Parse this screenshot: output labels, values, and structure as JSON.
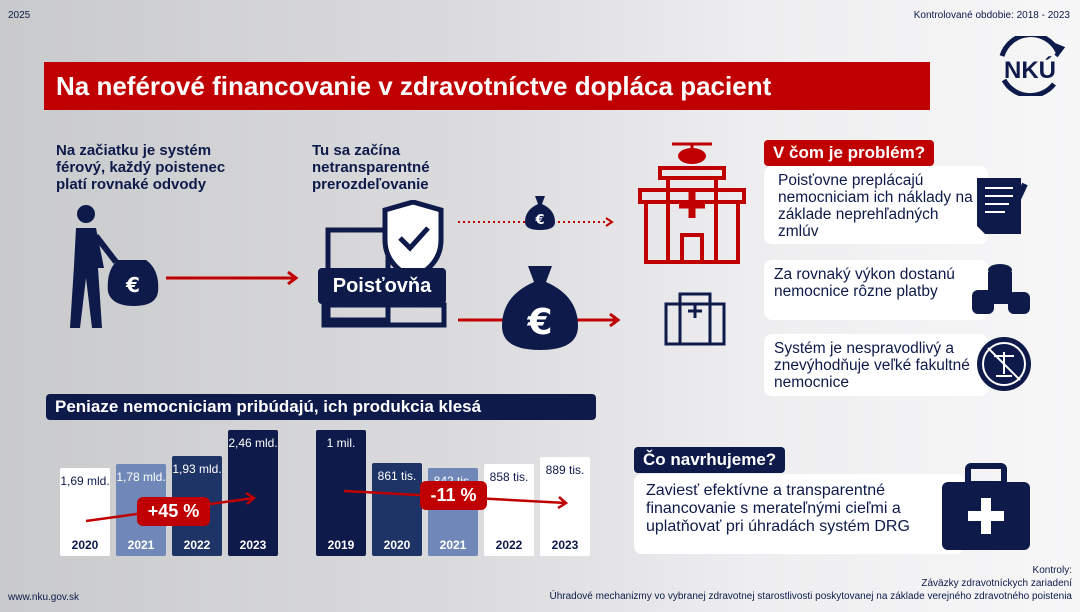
{
  "header": {
    "year": "2025",
    "period": "Kontrolované obdobie: 2018 - 2023",
    "logo": "NKÚ",
    "title": "Na neférové financovanie v zdravotníctve dopláca pacient"
  },
  "flow": {
    "lead_left": "Na začiatku je systém férový, každý poistenec platí rovnaké odvody",
    "lead_mid": "Tu sa začína netransparentné prerozdeľovanie",
    "insurer_label": "Poisťovňa",
    "euro": "€"
  },
  "problem": {
    "heading": "V čom je problém?",
    "items": [
      "Poisťovne preplácajú nemocniciam ich náklady na základe neprehľadných zmlúv",
      "Za rovnaký výkon dostanú nemocnice rôzne platby",
      "Systém je nespravodlivý a znevýhodňuje veľké fakultné nemocnice"
    ]
  },
  "charts": {
    "heading": "Peniaze nemocniciam pribúdajú, ich produkcia klesá",
    "chart_data": [
      {
        "type": "bar",
        "title": "Peniaze nemocniciam",
        "categories": [
          "2020",
          "2021",
          "2022",
          "2023"
        ],
        "values": [
          1.69,
          1.78,
          1.93,
          2.46
        ],
        "labels": [
          "1,69 mld.",
          "1,78 mld.",
          "1,93 mld.",
          "2,46 mld."
        ],
        "unit": "mld.",
        "change": "+45 %"
      },
      {
        "type": "bar",
        "title": "Produkcia",
        "categories": [
          "2019",
          "2020",
          "2021",
          "2022",
          "2023"
        ],
        "values": [
          1000,
          861,
          842,
          858,
          889
        ],
        "labels": [
          "1 mil.",
          "861 tis.",
          "842 tis.",
          "858 tis.",
          "889 tis."
        ],
        "unit": "tis.",
        "change": "-11 %"
      }
    ]
  },
  "proposal": {
    "heading": "Čo navrhujeme?",
    "text": "Zaviesť efektívne a transparentné financovanie s merateľnými cieľmi a uplatňovať pri úhradách systém DRG"
  },
  "footer": {
    "url": "www.nku.gov.sk",
    "controls_label": "Kontroly:",
    "control1": "Záväzky zdravotníckych zariadení",
    "control2": "Úhradové mechanizmy vo vybranej zdravotnej starostlivosti poskytovanej na základe verejného zdravotného poistenia"
  },
  "colors": {
    "red": "#c00000",
    "navy": "#0d1a4a",
    "mid": "#1e3366",
    "light": "#7088b8"
  }
}
